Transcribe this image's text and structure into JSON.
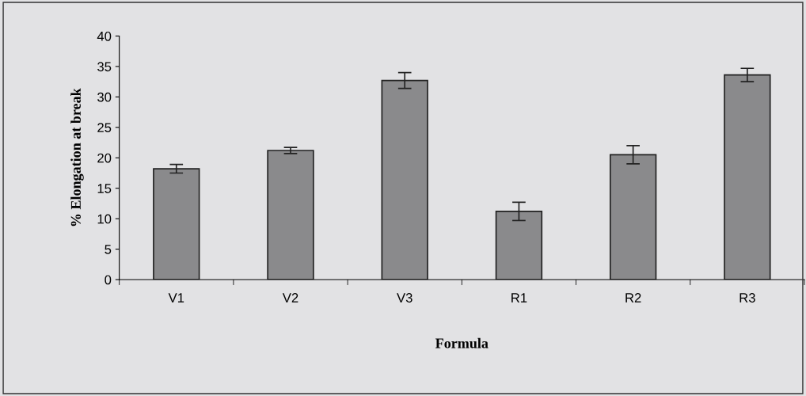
{
  "chart_data": {
    "type": "bar",
    "xlabel": "Formula",
    "ylabel": "% Elongation at break",
    "categories": [
      "V1",
      "V2",
      "V3",
      "R1",
      "R2",
      "R3"
    ],
    "values": [
      18.2,
      21.2,
      32.7,
      11.2,
      20.5,
      33.6
    ],
    "errors": [
      0.7,
      0.5,
      1.3,
      1.5,
      1.5,
      1.1
    ],
    "color": "#8a8a8c",
    "ylim": [
      0,
      40
    ],
    "yticks": [
      0,
      5,
      10,
      15,
      20,
      25,
      30,
      35,
      40
    ],
    "grid": false
  }
}
